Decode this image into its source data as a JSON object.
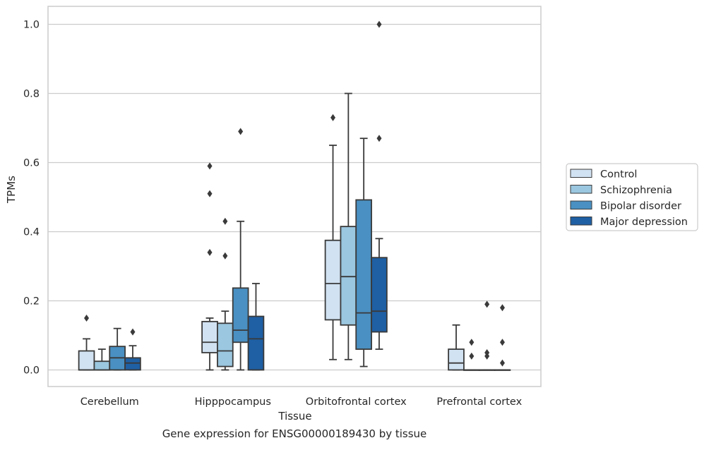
{
  "caption": "Gene expression for ENSG00000189430 by tissue",
  "chart_data": {
    "type": "box",
    "xlabel": "Tissue",
    "ylabel": "TPMs",
    "ylim": [
      -0.048,
      1.052
    ],
    "yticks": [
      "0.0",
      "0.2",
      "0.4",
      "0.6",
      "0.8",
      "1.0"
    ],
    "ytick_values": [
      0.0,
      0.2,
      0.4,
      0.6,
      0.8,
      1.0
    ],
    "grid": "horizontal",
    "legend_position": "right",
    "categories": [
      "Cerebellum",
      "Hipppocampus",
      "Orbitofrontal cortex",
      "Prefrontal cortex"
    ],
    "series": [
      {
        "name": "Control",
        "color": "#d1e2f2",
        "boxes": [
          {
            "whislo": 0.0,
            "q1": 0.0,
            "med": 0.0,
            "q3": 0.055,
            "whishi": 0.09,
            "fliers": [
              0.15
            ]
          },
          {
            "whislo": 0.0,
            "q1": 0.05,
            "med": 0.08,
            "q3": 0.14,
            "whishi": 0.15,
            "fliers": [
              0.34,
              0.51,
              0.59
            ]
          },
          {
            "whislo": 0.03,
            "q1": 0.145,
            "med": 0.25,
            "q3": 0.375,
            "whishi": 0.65,
            "fliers": [
              0.73
            ]
          },
          {
            "whislo": 0.0,
            "q1": 0.0,
            "med": 0.02,
            "q3": 0.06,
            "whishi": 0.13,
            "fliers": []
          }
        ]
      },
      {
        "name": "Schizophrenia",
        "color": "#9bc7e0",
        "boxes": [
          {
            "whislo": 0.0,
            "q1": 0.0,
            "med": 0.0,
            "q3": 0.025,
            "whishi": 0.06,
            "fliers": []
          },
          {
            "whislo": 0.0,
            "q1": 0.01,
            "med": 0.055,
            "q3": 0.135,
            "whishi": 0.17,
            "fliers": [
              0.33,
              0.43
            ]
          },
          {
            "whislo": 0.03,
            "q1": 0.13,
            "med": 0.27,
            "q3": 0.415,
            "whishi": 0.8,
            "fliers": []
          },
          {
            "whislo": 0.0,
            "q1": 0.0,
            "med": 0.0,
            "q3": 0.0,
            "whishi": 0.0,
            "fliers": [
              0.04,
              0.08
            ]
          }
        ]
      },
      {
        "name": "Bipolar disorder",
        "color": "#4a90c2",
        "boxes": [
          {
            "whislo": 0.0,
            "q1": 0.0,
            "med": 0.035,
            "q3": 0.068,
            "whishi": 0.12,
            "fliers": []
          },
          {
            "whislo": 0.0,
            "q1": 0.08,
            "med": 0.115,
            "q3": 0.237,
            "whishi": 0.43,
            "fliers": [
              0.69
            ]
          },
          {
            "whislo": 0.01,
            "q1": 0.06,
            "med": 0.165,
            "q3": 0.492,
            "whishi": 0.67,
            "fliers": []
          },
          {
            "whislo": 0.0,
            "q1": 0.0,
            "med": 0.0,
            "q3": 0.0,
            "whishi": 0.0,
            "fliers": [
              0.04,
              0.05,
              0.19
            ]
          }
        ]
      },
      {
        "name": "Major depression",
        "color": "#1f5fa3",
        "boxes": [
          {
            "whislo": 0.0,
            "q1": 0.0,
            "med": 0.02,
            "q3": 0.035,
            "whishi": 0.07,
            "fliers": [
              0.11
            ]
          },
          {
            "whislo": 0.0,
            "q1": 0.0,
            "med": 0.09,
            "q3": 0.155,
            "whishi": 0.25,
            "fliers": []
          },
          {
            "whislo": 0.06,
            "q1": 0.11,
            "med": 0.17,
            "q3": 0.325,
            "whishi": 0.38,
            "fliers": [
              0.67,
              1.0
            ]
          },
          {
            "whislo": 0.0,
            "q1": 0.0,
            "med": 0.0,
            "q3": 0.0,
            "whishi": 0.0,
            "fliers": [
              0.02,
              0.08,
              0.18
            ]
          }
        ]
      }
    ]
  }
}
